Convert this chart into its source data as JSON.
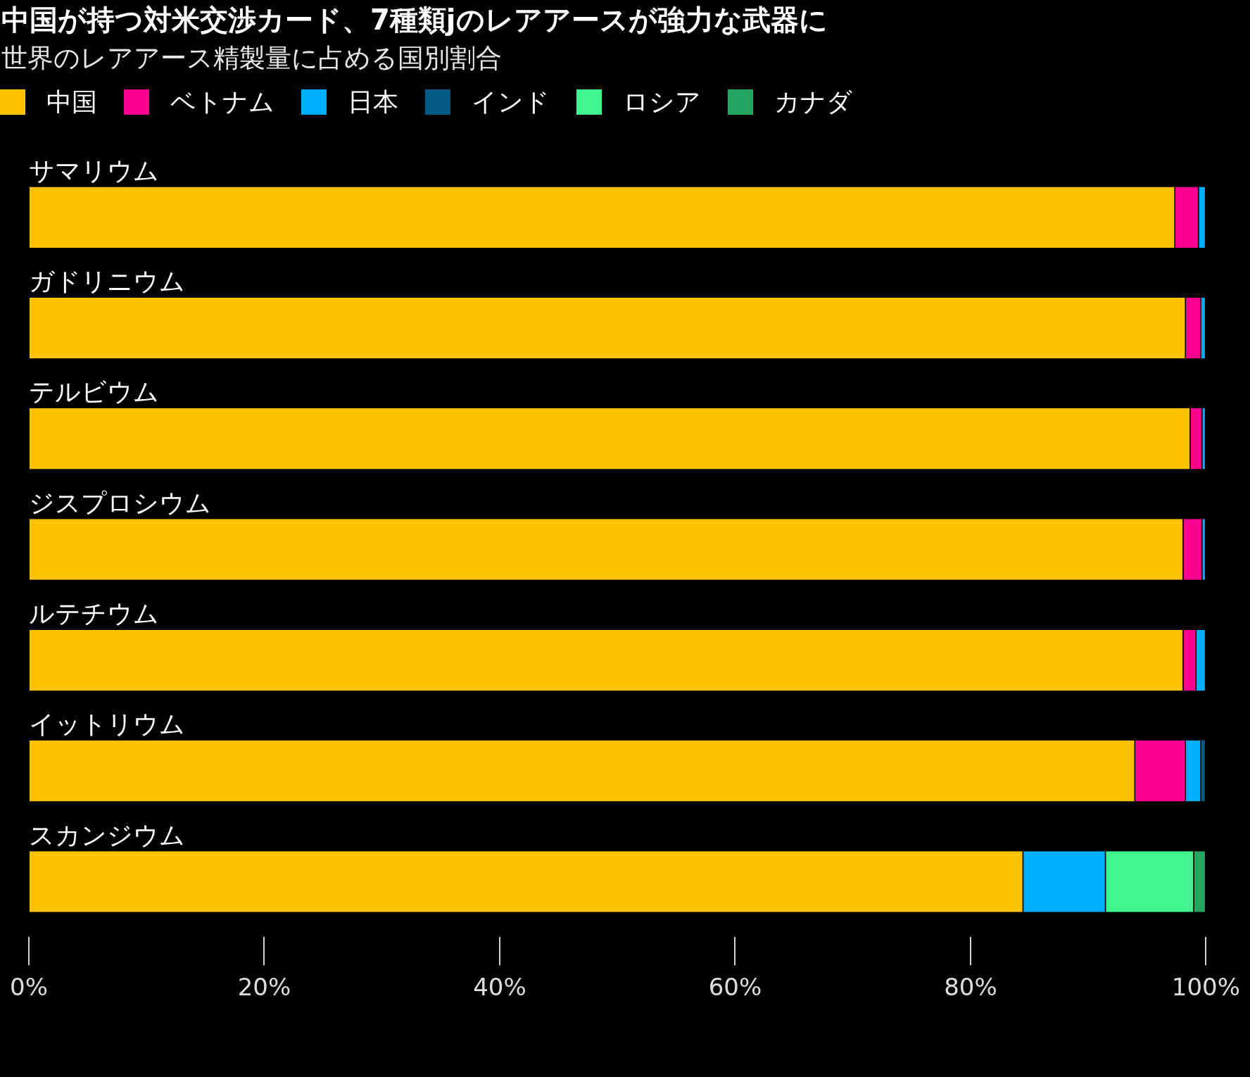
{
  "chart_data": {
    "type": "bar",
    "orientation": "horizontal",
    "stacked": true,
    "title": "中国が持つ対米交渉カード、7種類jのレアアースが強力な武器に",
    "subtitle": "世界のレアアース精製量に占める国別割合",
    "categories": [
      "サマリウム",
      "ガドリニウム",
      "テルビウム",
      "ジスプロシウム",
      "ルテチウム",
      "イットリウム",
      "スカンジウム"
    ],
    "series": [
      {
        "name": "中国",
        "color": "#ffc200",
        "values": [
          97.4,
          98.3,
          98.7,
          98.1,
          98.1,
          94.0,
          84.5
        ]
      },
      {
        "name": "ベトナム",
        "color": "#ff0090",
        "values": [
          2.0,
          1.3,
          1.0,
          1.6,
          1.1,
          4.3,
          null
        ]
      },
      {
        "name": "日本",
        "color": "#00aeff",
        "values": [
          0.6,
          0.4,
          0.3,
          0.3,
          0.8,
          1.3,
          7.0
        ]
      },
      {
        "name": "インド",
        "color": "#005a84",
        "values": [
          null,
          null,
          null,
          null,
          null,
          0.4,
          null
        ]
      },
      {
        "name": "ロシア",
        "color": "#40f590",
        "values": [
          null,
          null,
          null,
          null,
          null,
          null,
          7.5
        ]
      },
      {
        "name": "カナダ",
        "color": "#25a660",
        "values": [
          null,
          null,
          null,
          null,
          null,
          null,
          1.0
        ]
      }
    ],
    "xlim": [
      0,
      100
    ],
    "xticks": [
      {
        "value": 0,
        "label": "0%"
      },
      {
        "value": 20,
        "label": "20%"
      },
      {
        "value": 40,
        "label": "40%"
      },
      {
        "value": 60,
        "label": "60%"
      },
      {
        "value": 80,
        "label": "80%"
      },
      {
        "value": 100,
        "label": "100%"
      }
    ],
    "grid": false,
    "legend": "top left"
  }
}
